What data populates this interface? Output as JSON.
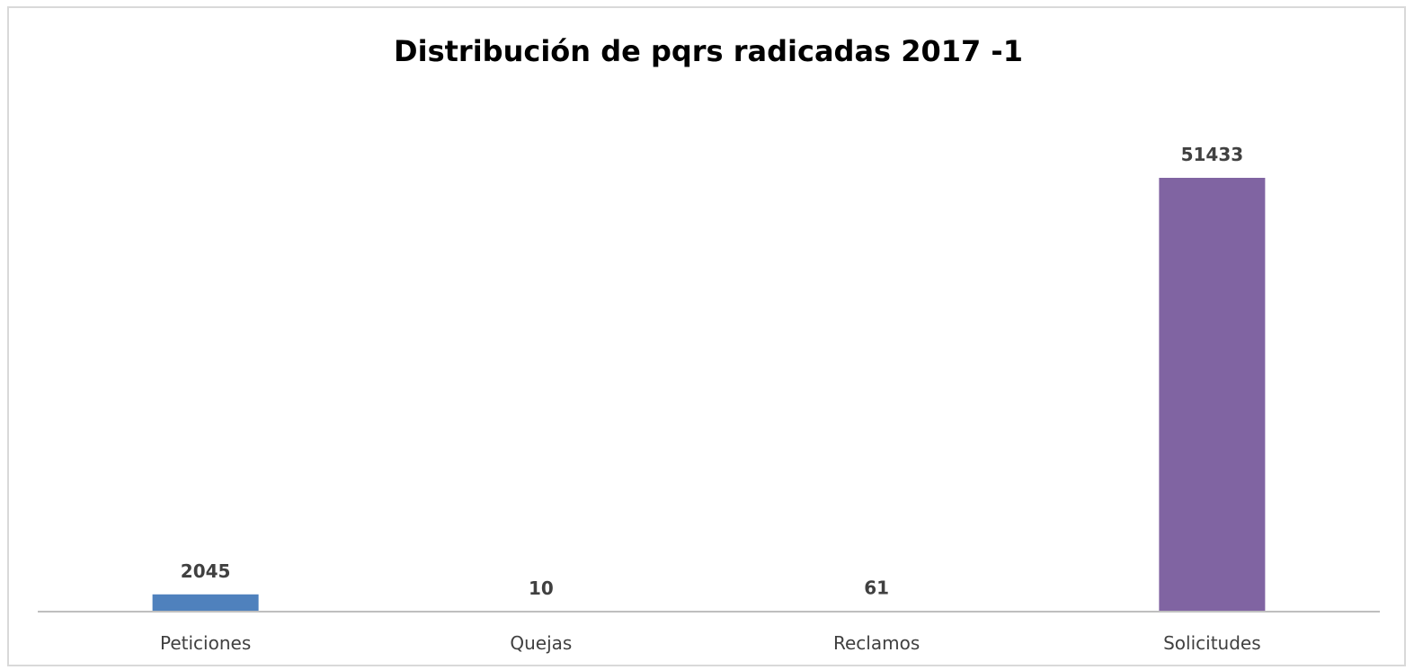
{
  "chart_data": {
    "type": "bar",
    "title": "Distribución de pqrs radicadas 2017 -1",
    "xlabel": "",
    "ylabel": "",
    "categories": [
      "Peticiones",
      "Quejas",
      "Reclamos",
      "Solicitudes"
    ],
    "values": [
      2045,
      10,
      61,
      51433
    ],
    "data_labels": [
      "2045",
      "10",
      "61",
      "51433"
    ],
    "colors": [
      "#4f81bd",
      "#c0504d",
      "#9bbb59",
      "#8064a2"
    ],
    "ylim": [
      0,
      51433
    ],
    "grid": false,
    "legend": "none",
    "baseline_color": "#bfbfbf"
  }
}
